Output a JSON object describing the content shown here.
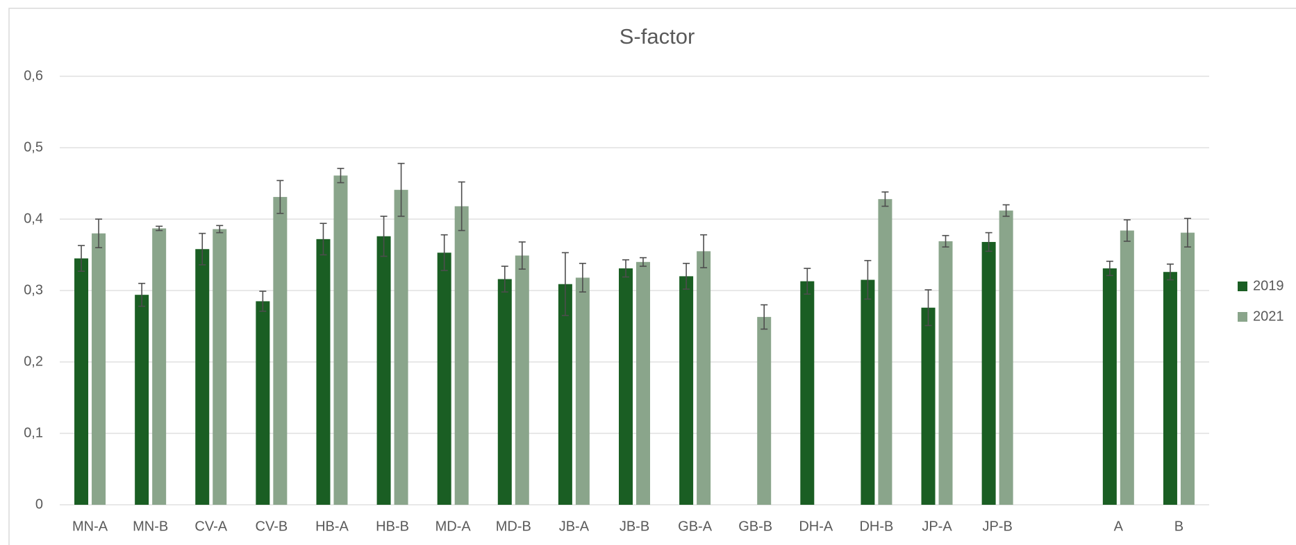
{
  "chart_data": {
    "type": "bar",
    "title": "S-factor",
    "categories": [
      "MN-A",
      "MN-B",
      "CV-A",
      "CV-B",
      "HB-A",
      "HB-B",
      "MD-A",
      "MD-B",
      "JB-A",
      "JB-B",
      "GB-A",
      "GB-B",
      "DH-A",
      "DH-B",
      "JP-A",
      "JP-B",
      null,
      "A",
      "B"
    ],
    "series": [
      {
        "name": "2019",
        "color": "#1a5e23",
        "values": [
          0.345,
          0.294,
          0.358,
          0.285,
          0.372,
          0.376,
          0.353,
          0.316,
          0.309,
          0.331,
          0.32,
          null,
          0.313,
          0.315,
          0.276,
          0.368,
          null,
          0.331,
          0.326
        ],
        "errors": [
          0.018,
          0.016,
          0.022,
          0.014,
          0.022,
          0.028,
          0.025,
          0.018,
          0.044,
          0.012,
          0.018,
          null,
          0.018,
          0.027,
          0.025,
          0.013,
          null,
          0.01,
          0.011
        ]
      },
      {
        "name": "2021",
        "color": "#8aa58b",
        "values": [
          0.38,
          0.387,
          0.386,
          0.431,
          0.461,
          0.441,
          0.418,
          0.349,
          0.318,
          0.34,
          0.355,
          0.263,
          null,
          0.428,
          0.369,
          0.412,
          null,
          0.384,
          0.381
        ],
        "errors": [
          0.02,
          0.003,
          0.005,
          0.023,
          0.01,
          0.037,
          0.034,
          0.019,
          0.02,
          0.006,
          0.023,
          0.017,
          null,
          0.01,
          0.008,
          0.008,
          null,
          0.015,
          0.02
        ]
      }
    ],
    "ylim": [
      0,
      0.6
    ],
    "yticks": [
      0,
      {
        "value": 0.1,
        "label": "0,1"
      },
      {
        "value": 0.2,
        "label": "0,2"
      },
      {
        "value": 0.3,
        "label": "0,3"
      },
      {
        "value": 0.4,
        "label": "0,4"
      },
      {
        "value": 0.5,
        "label": "0,5"
      },
      {
        "value": 0.6,
        "label": "0,6"
      }
    ],
    "grid": true,
    "legend": "right"
  }
}
